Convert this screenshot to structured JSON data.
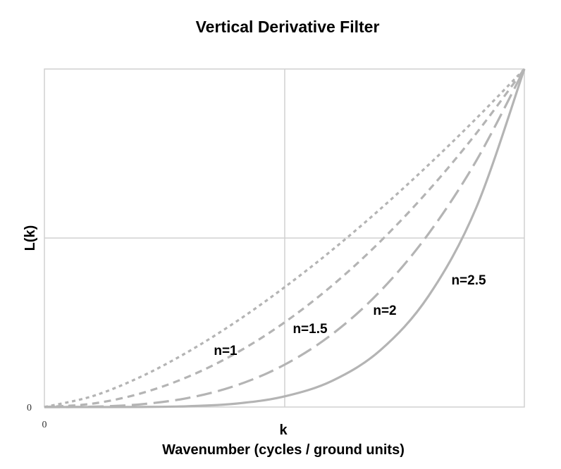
{
  "chart_data": {
    "type": "line",
    "title": "Vertical Derivative Filter",
    "xlabel_symbol": "k",
    "xlabel": "Wavenumber (cycles / ground units)",
    "ylabel": "L(k)",
    "xlim": [
      0,
      1
    ],
    "ylim": [
      0,
      1
    ],
    "x_tick_labels": [
      "0"
    ],
    "y_tick_labels": [
      "0"
    ],
    "grid": true,
    "legend": "inline labels",
    "x": [
      0,
      0.1,
      0.2,
      0.3,
      0.4,
      0.5,
      0.6,
      0.7,
      0.8,
      0.9,
      1.0
    ],
    "series": [
      {
        "name": "n=1",
        "style": "dotted",
        "color": "#b4b4b4",
        "values": [
          0,
          0.032,
          0.089,
          0.164,
          0.253,
          0.354,
          0.465,
          0.586,
          0.716,
          0.854,
          1
        ]
      },
      {
        "name": "n=1.5",
        "style": "dashed",
        "color": "#b4b4b4",
        "values": [
          0,
          0.01,
          0.04,
          0.09,
          0.16,
          0.25,
          0.36,
          0.49,
          0.64,
          0.81,
          1
        ]
      },
      {
        "name": "n=2",
        "style": "long-dash",
        "color": "#b4b4b4",
        "values": [
          0,
          0.001,
          0.008,
          0.027,
          0.064,
          0.125,
          0.216,
          0.343,
          0.512,
          0.729,
          1
        ]
      },
      {
        "name": "n=2.5",
        "style": "solid",
        "color": "#b4b4b4",
        "values": [
          0,
          0,
          0.0003,
          0.0024,
          0.0102,
          0.0313,
          0.0778,
          0.1681,
          0.3277,
          0.5905,
          1
        ]
      }
    ]
  }
}
